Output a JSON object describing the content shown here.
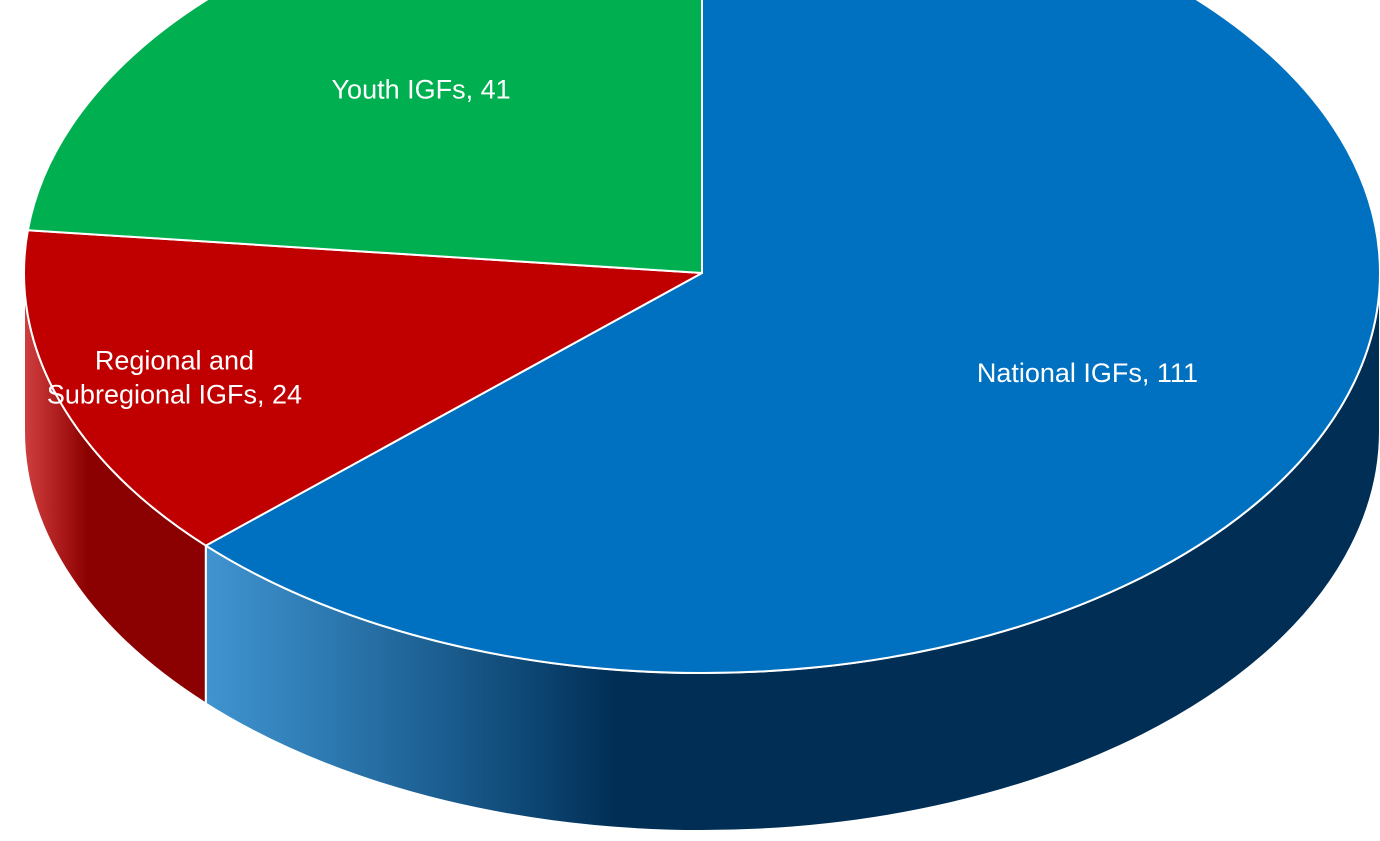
{
  "chart_data": {
    "type": "pie",
    "style": "3d",
    "categories": [
      "National IGFs",
      "Regional and Subregional IGFs",
      "Youth IGFs"
    ],
    "values": [
      111,
      24,
      41
    ],
    "labels": [
      [
        "National IGFs, 111"
      ],
      [
        "Regional and",
        "Subregional IGFs, 24"
      ],
      [
        "Youth IGFs, 41"
      ]
    ],
    "colors": {
      "National IGFs": "#0070c0",
      "Regional and Subregional IGFs": "#c00000",
      "Youth IGFs": "#00b050"
    },
    "side_colors": {
      "National IGFs": "#002e55",
      "Regional and Subregional IGFs": "#8b0000",
      "Youth IGFs": "#007a3a"
    },
    "legend": "none",
    "title": "",
    "label_color": "#ffffff"
  }
}
